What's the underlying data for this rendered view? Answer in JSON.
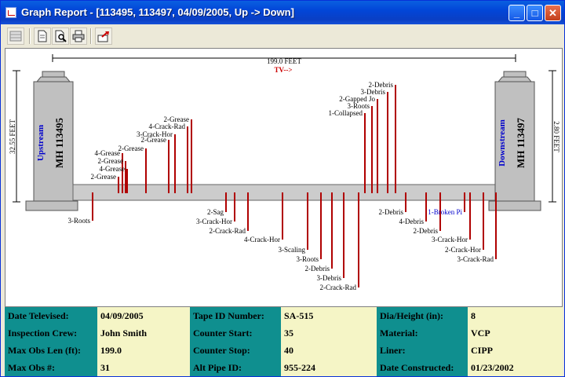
{
  "window": {
    "title": "Graph Report - [113495, 113497, 04/09/2005, Up -> Down]",
    "controls": [
      "minimize",
      "maximize",
      "close"
    ]
  },
  "toolbar": {
    "buttons": [
      "grid-icon",
      "page-icon",
      "print-preview-icon",
      "printer-icon",
      "export-icon"
    ]
  },
  "graph": {
    "length_label": "199.0 FEET",
    "direction_label": "TV-->",
    "upstream": {
      "word": "Upstream",
      "id": "MH 113495",
      "depth": "32.55 FEET"
    },
    "downstream": {
      "word": "Downstream",
      "id": "MH 113497",
      "depth": "2.80 FEET"
    },
    "colors": {
      "marker": "#b00000",
      "manhole": "#c0c0c0",
      "pipe": "#cccccc",
      "wordBlue": "#0000cc",
      "tv": "#cc0000"
    },
    "top_labels": [
      "2-Grease",
      "4-Grease",
      "2-Grease",
      "4-Grease",
      "2-Grease",
      "2-Grease",
      "3-Crack-Hor",
      "4-Crack-Rad",
      "2-Grease",
      "1-Collapsed",
      "3-Roots",
      "2-Gapped Jo",
      "3-Debris",
      "2-Debris"
    ],
    "bottom_labels": [
      "3-Roots",
      "2-Sag",
      "3-Crack-Hor",
      "2-Crack-Rad",
      "4-Crack-Hor",
      "3-Scaling",
      "3-Roots",
      "2-Debris",
      "3-Debris",
      "2-Crack-Rad",
      "2-Debris",
      "4-Debris",
      "2-Debris",
      "1-Broken Pi",
      "3-Crack-Hor",
      "2-Crack-Hor",
      "3-Crack-Rad"
    ]
  },
  "info": {
    "rows": [
      [
        {
          "label": "Date Televised:",
          "value": "04/09/2005"
        },
        {
          "label": "Tape ID Number:",
          "value": "SA-515"
        },
        {
          "label": "Dia/Height (in):",
          "value": "8"
        }
      ],
      [
        {
          "label": "Inspection Crew:",
          "value": "John Smith"
        },
        {
          "label": "Counter Start:",
          "value": "35"
        },
        {
          "label": "Material:",
          "value": "VCP"
        }
      ],
      [
        {
          "label": "Max Obs Len (ft):",
          "value": "199.0"
        },
        {
          "label": "Counter Stop:",
          "value": "40"
        },
        {
          "label": "Liner:",
          "value": "CIPP"
        }
      ],
      [
        {
          "label": "Max Obs #:",
          "value": "31"
        },
        {
          "label": "Alt Pipe ID:",
          "value": "955-224"
        },
        {
          "label": "Date Constructed:",
          "value": "01/23/2002"
        }
      ]
    ]
  }
}
